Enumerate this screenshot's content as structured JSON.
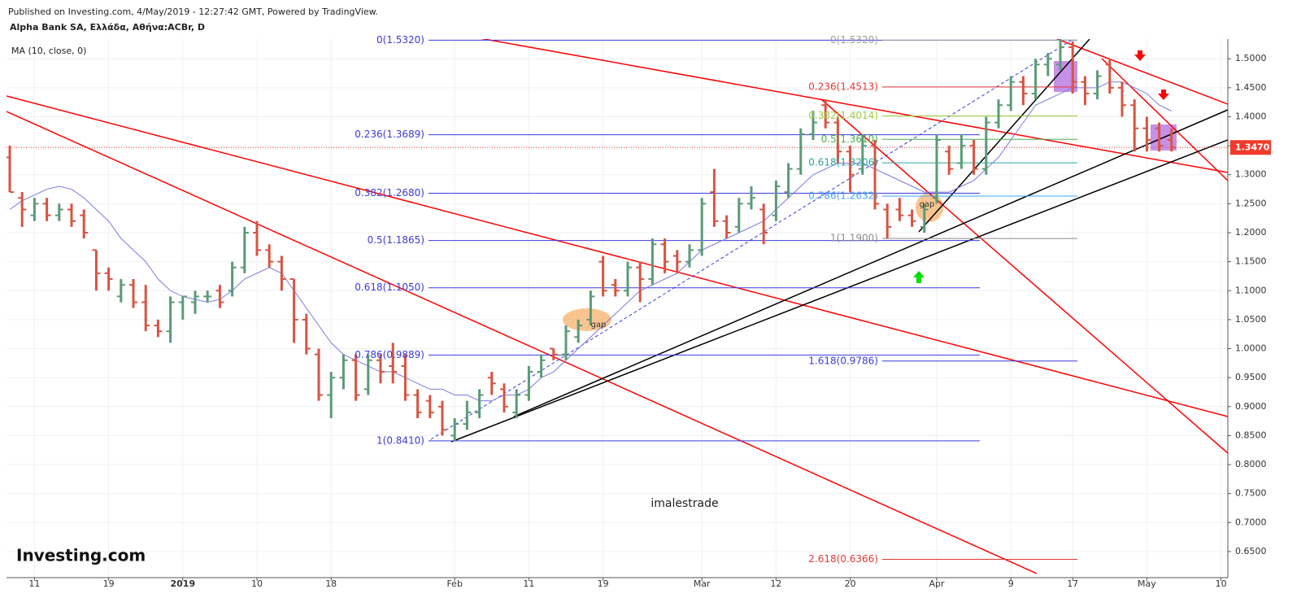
{
  "chart_data": {
    "type": "ohlc",
    "publisher": "Published on Investing.com, 4/May/2019 - 12:27:42 GMT, Powered by TradingView.",
    "title": "Alpha Bank SA, Ελλάδα, Αθήνα:ACBr, D",
    "watermark": "imalestrade",
    "logo": "Investing.com",
    "annotations": [
      "gap",
      "gap"
    ],
    "categories": [
      null,
      null,
      "11",
      null,
      null,
      null,
      null,
      null,
      "19",
      null,
      null,
      null,
      null,
      null,
      "2019",
      null,
      null,
      null,
      null,
      null,
      "10",
      null,
      null,
      null,
      null,
      null,
      "18",
      null,
      null,
      null,
      null,
      null,
      null,
      null,
      null,
      null,
      "Feb",
      null,
      null,
      null,
      null,
      null,
      "11",
      null,
      null,
      null,
      null,
      null,
      "19",
      null,
      null,
      null,
      null,
      null,
      null,
      null,
      "Mar",
      null,
      null,
      null,
      null,
      null,
      "12",
      null,
      null,
      null,
      null,
      null,
      "20",
      null,
      null,
      null,
      null,
      null,
      null,
      "Apr",
      null,
      null,
      null,
      null,
      null,
      "9",
      null,
      null,
      null,
      null,
      "17",
      null,
      null,
      null,
      null,
      null,
      "May",
      null,
      null,
      null,
      null,
      null,
      "10"
    ],
    "open": [
      1.33,
      1.26,
      1.23,
      1.25,
      1.23,
      1.24,
      1.23,
      1.17,
      1.13,
      1.09,
      1.11,
      1.08,
      1.04,
      1.03,
      1.08,
      1.08,
      1.09,
      1.1,
      1.1,
      1.14,
      1.2,
      1.17,
      1.15,
      1.12,
      1.05,
      0.99,
      0.92,
      0.95,
      0.98,
      0.93,
      0.98,
      0.97,
      0.97,
      0.92,
      0.91,
      0.9,
      0.85,
      0.87,
      0.89,
      0.95,
      0.93,
      0.89,
      0.92,
      0.96,
      1.0,
      0.99,
      1.02,
      1.05,
      1.15,
      1.11,
      1.1,
      1.14,
      1.12,
      1.18,
      1.16,
      1.15,
      1.17,
      1.27,
      1.22,
      1.21,
      1.25,
      1.24,
      1.23,
      1.27,
      1.31,
      1.37,
      1.42,
      1.39,
      1.34,
      1.31,
      1.35,
      1.24,
      1.24,
      1.23,
      1.21,
      1.26,
      1.34,
      1.32,
      1.35,
      1.31,
      1.39,
      1.42,
      1.46,
      1.44,
      1.49,
      1.49,
      1.52,
      1.46,
      1.44,
      1.49,
      1.45,
      1.42,
      1.38,
      1.38,
      1.36,
      null,
      null,
      null,
      null
    ],
    "high": [
      1.35,
      1.27,
      1.26,
      1.26,
      1.25,
      1.25,
      1.24,
      1.17,
      1.14,
      1.12,
      1.12,
      1.11,
      1.05,
      1.09,
      1.09,
      1.1,
      1.1,
      1.11,
      1.15,
      1.21,
      1.22,
      1.18,
      1.16,
      1.12,
      1.06,
      1.0,
      0.96,
      0.99,
      0.99,
      0.99,
      0.99,
      1.01,
      0.99,
      0.93,
      0.92,
      0.91,
      0.88,
      0.91,
      0.93,
      0.96,
      0.94,
      0.93,
      0.97,
      0.99,
      1.0,
      1.04,
      1.05,
      1.1,
      1.16,
      1.12,
      1.15,
      1.15,
      1.19,
      1.19,
      1.17,
      1.18,
      1.26,
      1.31,
      1.23,
      1.26,
      1.28,
      1.25,
      1.29,
      1.32,
      1.38,
      1.41,
      1.43,
      1.4,
      1.35,
      1.37,
      1.36,
      1.25,
      1.26,
      1.24,
      1.25,
      1.37,
      1.35,
      1.37,
      1.36,
      1.4,
      1.43,
      1.47,
      1.47,
      1.5,
      1.51,
      1.54,
      1.53,
      1.47,
      1.48,
      1.5,
      1.46,
      1.43,
      1.4,
      1.39,
      1.38,
      null,
      null,
      null,
      null
    ],
    "low": [
      1.27,
      1.21,
      1.22,
      1.22,
      1.22,
      1.21,
      1.19,
      1.1,
      1.1,
      1.08,
      1.07,
      1.03,
      1.02,
      1.01,
      1.05,
      1.06,
      1.08,
      1.07,
      1.09,
      1.13,
      1.16,
      1.14,
      1.1,
      1.01,
      0.99,
      0.91,
      0.88,
      0.93,
      0.91,
      0.92,
      0.94,
      0.94,
      0.91,
      0.88,
      0.88,
      0.85,
      0.84,
      0.86,
      0.88,
      0.92,
      0.89,
      0.88,
      0.91,
      0.95,
      0.98,
      0.98,
      1.01,
      1.04,
      1.09,
      1.09,
      1.09,
      1.08,
      1.11,
      1.13,
      1.13,
      1.14,
      1.16,
      1.21,
      1.19,
      1.2,
      1.24,
      1.18,
      1.22,
      1.26,
      1.3,
      1.36,
      1.38,
      1.32,
      1.27,
      1.3,
      1.24,
      1.19,
      1.22,
      1.21,
      1.2,
      1.25,
      1.3,
      1.31,
      1.3,
      1.3,
      1.38,
      1.41,
      1.42,
      1.43,
      1.47,
      1.48,
      1.44,
      1.42,
      1.43,
      1.44,
      1.4,
      1.34,
      1.34,
      1.34,
      1.34,
      null,
      null,
      null,
      null
    ],
    "close": [
      1.27,
      1.24,
      1.25,
      1.23,
      1.24,
      1.22,
      1.2,
      1.13,
      1.12,
      1.11,
      1.08,
      1.04,
      1.03,
      1.08,
      1.09,
      1.09,
      1.09,
      1.08,
      1.14,
      1.2,
      1.17,
      1.15,
      1.12,
      1.05,
      1.0,
      0.92,
      0.95,
      0.98,
      0.92,
      0.98,
      0.96,
      0.96,
      0.92,
      0.89,
      0.89,
      0.86,
      0.87,
      0.89,
      0.92,
      0.94,
      0.9,
      0.92,
      0.96,
      0.98,
      0.99,
      1.03,
      1.04,
      1.09,
      1.1,
      1.1,
      1.14,
      1.12,
      1.18,
      1.15,
      1.15,
      1.17,
      1.25,
      1.22,
      1.2,
      1.25,
      1.26,
      1.2,
      1.28,
      1.31,
      1.37,
      1.39,
      1.39,
      1.34,
      1.3,
      1.35,
      1.25,
      1.21,
      1.23,
      1.22,
      1.24,
      1.36,
      1.31,
      1.35,
      1.31,
      1.39,
      1.42,
      1.46,
      1.44,
      1.49,
      1.5,
      1.52,
      1.46,
      1.44,
      1.47,
      1.45,
      1.42,
      1.38,
      1.36,
      1.35,
      1.347,
      null,
      null,
      null,
      null
    ],
    "up_color": "#5b9a78",
    "down_color": "#d75442",
    "ma": {
      "name": "MA (10, close, 0)",
      "color": "#7b7be0",
      "values": [
        1.24,
        1.255,
        1.265,
        1.275,
        1.28,
        1.275,
        1.26,
        1.24,
        1.22,
        1.19,
        1.17,
        1.15,
        1.12,
        1.1,
        1.09,
        1.085,
        1.08,
        1.085,
        1.1,
        1.12,
        1.13,
        1.14,
        1.13,
        1.1,
        1.07,
        1.04,
        1.01,
        0.99,
        0.98,
        0.97,
        0.96,
        0.96,
        0.95,
        0.94,
        0.93,
        0.93,
        0.92,
        0.92,
        0.91,
        0.91,
        0.92,
        0.92,
        0.93,
        0.95,
        0.96,
        0.98,
        1.0,
        1.02,
        1.04,
        1.06,
        1.08,
        1.1,
        1.11,
        1.12,
        1.13,
        1.15,
        1.17,
        1.18,
        1.19,
        1.2,
        1.21,
        1.22,
        1.24,
        1.26,
        1.28,
        1.3,
        1.31,
        1.32,
        1.32,
        1.32,
        1.31,
        1.3,
        1.29,
        1.28,
        1.27,
        1.27,
        1.27,
        1.28,
        1.29,
        1.31,
        1.33,
        1.36,
        1.39,
        1.42,
        1.43,
        1.44,
        1.45,
        1.45,
        1.45,
        1.46,
        1.46,
        1.45,
        1.44,
        1.42,
        1.41,
        null,
        null,
        null,
        null
      ]
    },
    "last_price": {
      "value": 1.347,
      "label": "1.3470",
      "color": "#f23b2c"
    },
    "ylim": [
      0.605,
      1.534
    ],
    "yticks": [
      {
        "value": 0.65,
        "label": "0.6500"
      },
      {
        "value": 0.7,
        "label": "0.7000"
      },
      {
        "value": 0.75,
        "label": "0.7500"
      },
      {
        "value": 0.8,
        "label": "0.8000"
      },
      {
        "value": 0.85,
        "label": "0.8500"
      },
      {
        "value": 0.9,
        "label": "0.9000"
      },
      {
        "value": 0.95,
        "label": "0.9500"
      },
      {
        "value": 1.0,
        "label": "1.0000"
      },
      {
        "value": 1.05,
        "label": "1.0500"
      },
      {
        "value": 1.1,
        "label": "1.1000"
      },
      {
        "value": 1.15,
        "label": "1.1500"
      },
      {
        "value": 1.2,
        "label": "1.2000"
      },
      {
        "value": 1.25,
        "label": "1.2500"
      },
      {
        "value": 1.3,
        "label": "1.3000"
      },
      {
        "value": 1.35,
        "label": "1.3500"
      },
      {
        "value": 1.4,
        "label": "1.4000"
      },
      {
        "value": 1.45,
        "label": "1.4500"
      },
      {
        "value": 1.5,
        "label": "1.5000"
      }
    ],
    "grid": true,
    "fib_left": {
      "color": "#3b3bd9",
      "levels": [
        {
          "label": "0(1.5320)",
          "value": 1.532
        },
        {
          "label": "0.236(1.3689)",
          "value": 1.3689
        },
        {
          "label": "0.382(1.2680)",
          "value": 1.268
        },
        {
          "label": "0.5(1.1865)",
          "value": 1.1865
        },
        {
          "label": "0.618(1.1050)",
          "value": 1.105
        },
        {
          "label": "0.786(0.9889)",
          "value": 0.9889
        },
        {
          "label": "1(0.8410)",
          "value": 0.841
        }
      ]
    },
    "fib_right": {
      "levels": [
        {
          "label": "0(1.5320)",
          "value": 1.532,
          "color": "#9e9e9e"
        },
        {
          "label": "0.236(1.4513)",
          "value": 1.4513,
          "color": "#e53935"
        },
        {
          "label": "0.382(1.4014)",
          "value": 1.4014,
          "color": "#9ccc3b"
        },
        {
          "label": "0.5(1.3610)",
          "value": 1.361,
          "color": "#4caf50"
        },
        {
          "label": "0.618(1.3206)",
          "value": 1.3206,
          "color": "#26a69a"
        },
        {
          "label": "0.786(1.2632)",
          "value": 1.2632,
          "color": "#42a5f5"
        },
        {
          "label": "1(1.1900)",
          "value": 1.19,
          "color": "#8c8c8c"
        },
        {
          "label": "1.618(0.9786)",
          "value": 0.9786,
          "color": "#3b3bd9"
        },
        {
          "label": "2.618(0.6366)",
          "value": 0.6366,
          "color": "#e53935"
        }
      ]
    }
  }
}
